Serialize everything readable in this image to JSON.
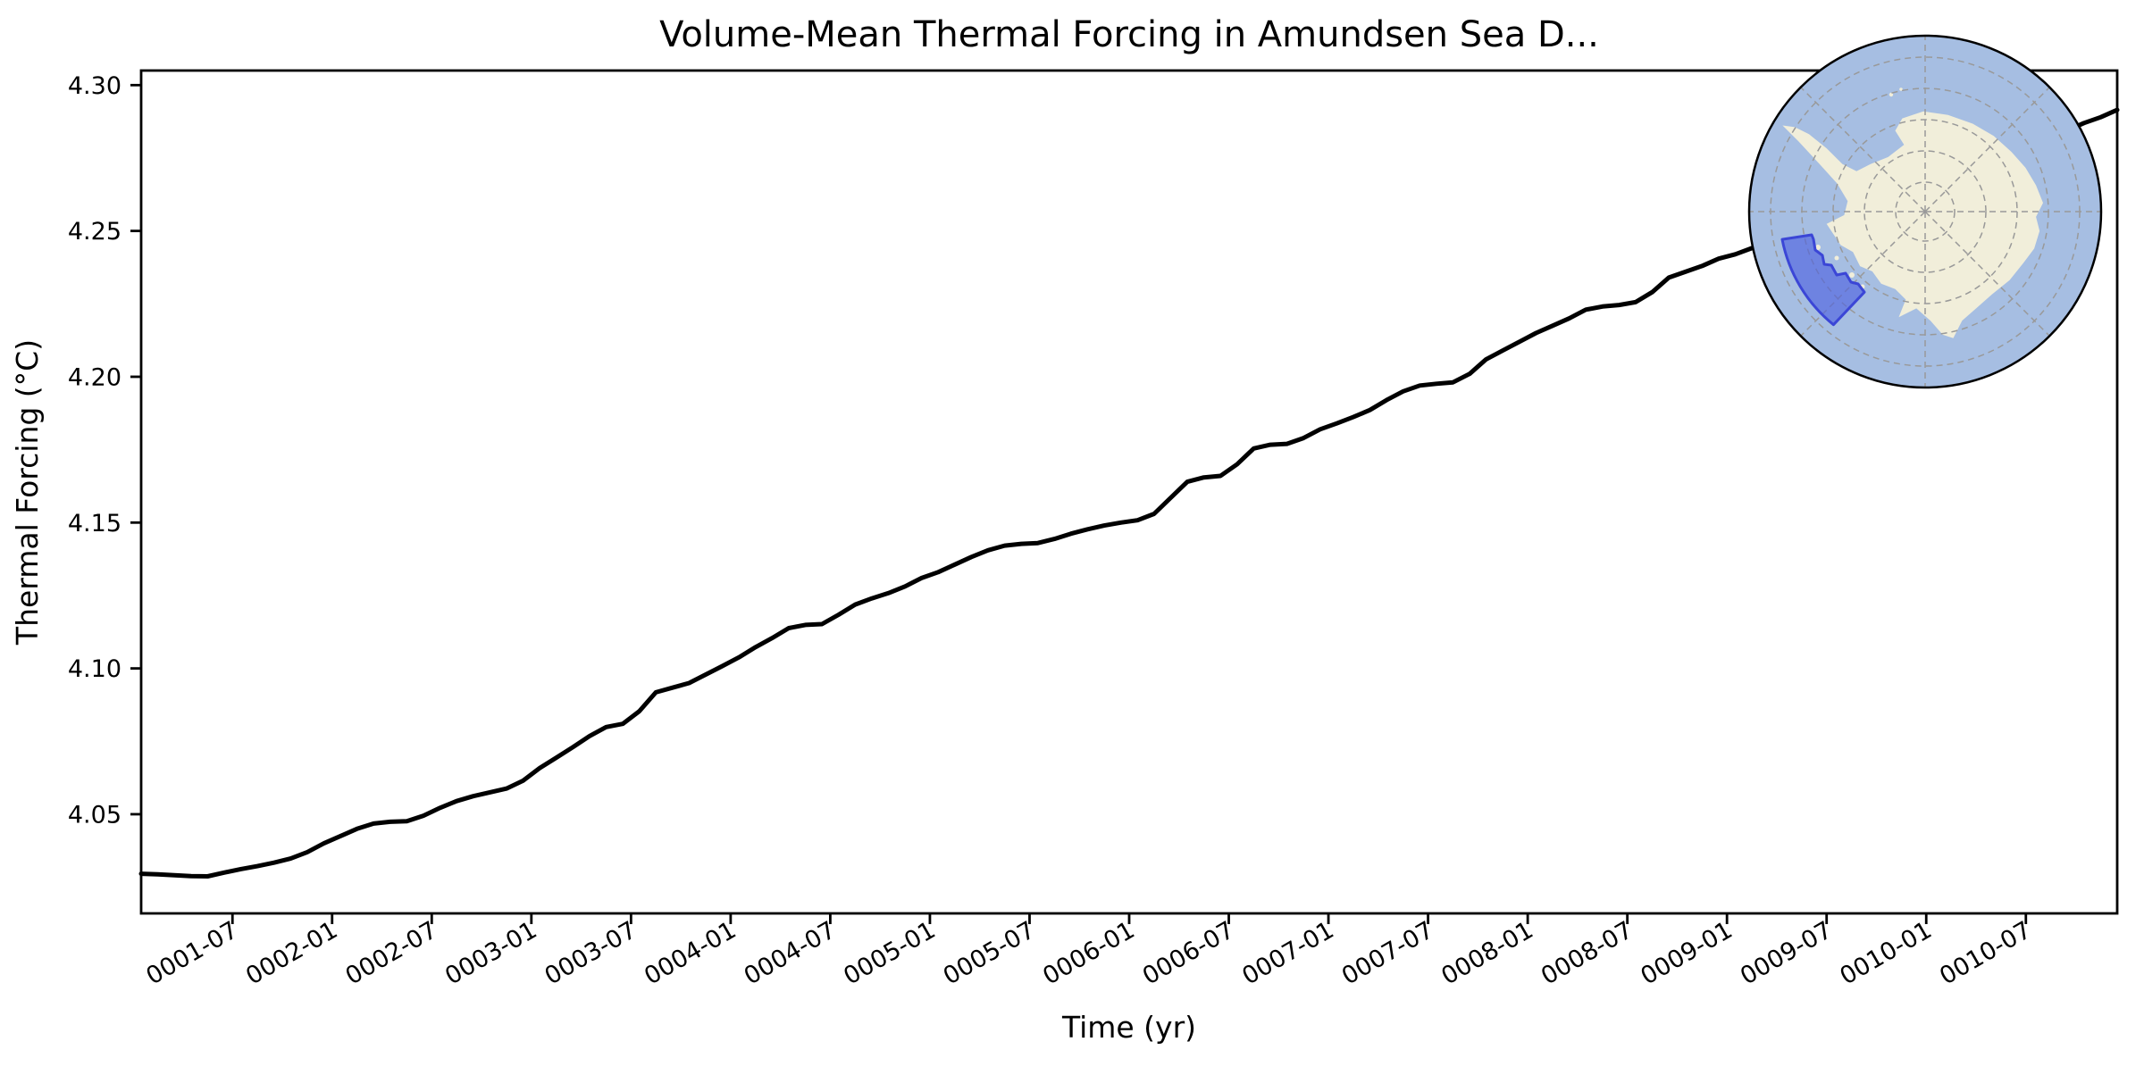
{
  "figure": {
    "title": "Volume-Mean Thermal Forcing in Amundsen Sea D..."
  },
  "chart_data": {
    "type": "line",
    "title": "Volume-Mean Thermal Forcing in Amundsen Sea D...",
    "xlabel": "Time (yr)",
    "ylabel": "Thermal Forcing (°C)",
    "grid": false,
    "legend_position": "none",
    "ylim": [
      4.016,
      4.305
    ],
    "y_tick_labels": [
      "4.05",
      "4.10",
      "4.15",
      "4.20",
      "4.25",
      "4.30"
    ],
    "x_tick_labels": [
      "0001-07",
      "0002-01",
      "0002-07",
      "0003-01",
      "0003-07",
      "0004-01",
      "0004-07",
      "0005-01",
      "0005-07",
      "0006-01",
      "0006-07",
      "0007-01",
      "0007-07",
      "0008-01",
      "0008-07",
      "0009-01",
      "0009-07",
      "0010-01",
      "0010-07"
    ],
    "x_tick_rotation_deg": 30,
    "x_start_month": "0001-01",
    "x_frequency": "monthly",
    "series": [
      {
        "name": "Volume-mean thermal forcing",
        "color": "#000000",
        "linewidth": 5,
        "values": [
          4.0296,
          4.0294,
          4.0291,
          4.0288,
          4.0287,
          4.03,
          4.0312,
          4.0322,
          4.0334,
          4.0348,
          4.037,
          4.04,
          4.0425,
          4.045,
          4.0468,
          4.0474,
          4.0476,
          4.0495,
          4.0522,
          4.0545,
          4.0562,
          4.0575,
          4.0588,
          4.0615,
          4.0658,
          4.0694,
          4.073,
          4.0768,
          4.0799,
          4.081,
          4.0853,
          4.0918,
          4.0934,
          4.095,
          4.0979,
          4.1008,
          4.1038,
          4.1073,
          4.1104,
          4.1138,
          4.1149,
          4.1152,
          4.1184,
          4.1219,
          4.124,
          4.1258,
          4.1281,
          4.131,
          4.133,
          4.1356,
          4.1382,
          4.1405,
          4.1421,
          4.1427,
          4.143,
          4.1444,
          4.1462,
          4.1477,
          4.149,
          4.15,
          4.1508,
          4.153,
          4.1585,
          4.164,
          4.1655,
          4.166,
          4.17,
          4.1754,
          4.1767,
          4.177,
          4.179,
          4.182,
          4.184,
          4.1862,
          4.1886,
          4.192,
          4.195,
          4.197,
          4.1976,
          4.1981,
          4.201,
          4.206,
          4.209,
          4.212,
          4.215,
          4.2175,
          4.22,
          4.223,
          4.2241,
          4.2246,
          4.2256,
          4.229,
          4.234,
          4.236,
          4.238,
          4.2405,
          4.242,
          4.2441,
          4.2465,
          4.2481,
          4.25,
          4.2521,
          4.2544,
          4.2565,
          4.259,
          4.2611,
          4.2635,
          4.266,
          4.268,
          4.27,
          4.2721,
          4.274,
          4.276,
          4.278,
          4.28,
          4.2821,
          4.2845,
          4.287,
          4.289,
          4.2915
        ]
      }
    ],
    "inset_map": {
      "name": "Antarctica south polar stereographic inset",
      "highlight": "Amundsen Sea sector",
      "colors": {
        "ocean": "#a6bee2",
        "land": "#f1eeda",
        "region_fill": "#4c5fe0",
        "region_edge": "#3b46d6",
        "graticule": "#999999",
        "border": "#000000"
      }
    }
  },
  "colors": {
    "background": "#ffffff",
    "axis": "#000000"
  }
}
